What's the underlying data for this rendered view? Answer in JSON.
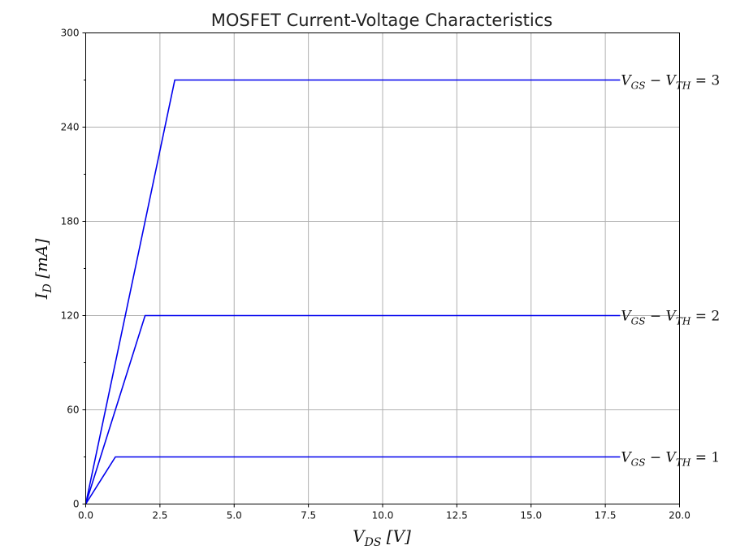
{
  "chart_data": {
    "type": "line",
    "title": "MOSFET Current-Voltage Characteristics",
    "xlabel": {
      "base": "V",
      "sub": "DS",
      "unit": "[V]"
    },
    "ylabel": {
      "base": "I",
      "sub": "D",
      "unit": "[mA]"
    },
    "xlim": [
      0,
      20
    ],
    "ylim": [
      0,
      300
    ],
    "xticks": [
      0,
      2.5,
      5,
      7.5,
      10,
      12.5,
      15,
      17.5,
      20
    ],
    "xtick_labels": [
      "0.0",
      "2.5",
      "5.0",
      "7.5",
      "10.0",
      "12.5",
      "15.0",
      "17.5",
      "20.0"
    ],
    "yticks": [
      0,
      60,
      120,
      180,
      240,
      300
    ],
    "ytick_labels": [
      "0",
      "60",
      "120",
      "180",
      "240",
      "300"
    ],
    "yminor_ticks": [
      30,
      90,
      150,
      210,
      270
    ],
    "grid": true,
    "line_color": "#0000ee",
    "series": [
      {
        "x": [
          0,
          1,
          18
        ],
        "y": [
          0,
          30,
          30
        ],
        "label": {
          "lhs": "V",
          "sub1": "GS",
          "mid": " − V",
          "sub2": "TH",
          "rhs": " = 1"
        }
      },
      {
        "x": [
          0,
          2,
          18
        ],
        "y": [
          0,
          120,
          120
        ],
        "label": {
          "lhs": "V",
          "sub1": "GS",
          "mid": " − V",
          "sub2": "TH",
          "rhs": " = 2"
        }
      },
      {
        "x": [
          0,
          3,
          18
        ],
        "y": [
          0,
          270,
          270
        ],
        "label": {
          "lhs": "V",
          "sub1": "GS",
          "mid": " − V",
          "sub2": "TH",
          "rhs": " = 3"
        }
      }
    ]
  }
}
